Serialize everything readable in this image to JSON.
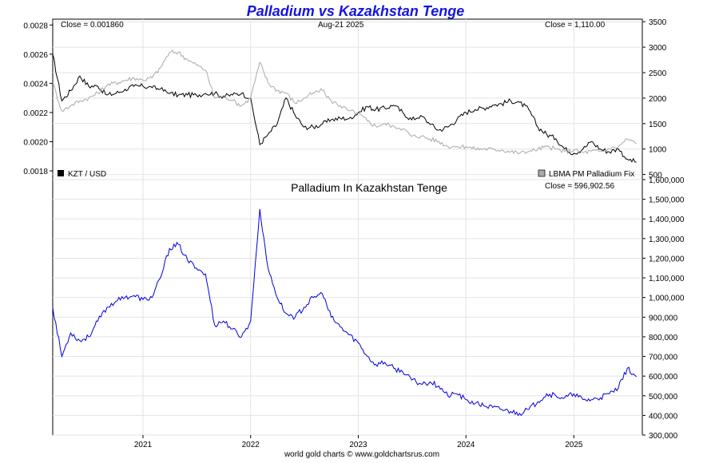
{
  "title": "Palladium vs Kazakhstan Tenge",
  "footer": "world gold charts © www.goldchartsrus.com",
  "chart_data": [
    {
      "type": "line",
      "panel": "top",
      "date_label": "Aug-21  2025",
      "left_close_label": "Close = 0.001860",
      "right_close_label": "Close = 1,110.00",
      "left_axis": {
        "ticks": [
          0.0018,
          0.002,
          0.0022,
          0.0024,
          0.0026,
          0.0028
        ],
        "ylim": [
          0.00174,
          0.00284
        ]
      },
      "right_axis": {
        "ticks": [
          500,
          1000,
          1500,
          2000,
          2500,
          3000,
          3500
        ],
        "ylim": [
          400,
          3550
        ]
      },
      "x": [
        "2020-03",
        "2020-04",
        "2020-05",
        "2020-06",
        "2020-07",
        "2020-08",
        "2020-09",
        "2020-10",
        "2020-11",
        "2020-12",
        "2021-01",
        "2021-02",
        "2021-03",
        "2021-04",
        "2021-05",
        "2021-06",
        "2021-07",
        "2021-08",
        "2021-09",
        "2021-10",
        "2021-11",
        "2021-12",
        "2022-01",
        "2022-02",
        "2022-03",
        "2022-04",
        "2022-05",
        "2022-06",
        "2022-07",
        "2022-08",
        "2022-09",
        "2022-10",
        "2022-11",
        "2022-12",
        "2023-01",
        "2023-02",
        "2023-03",
        "2023-04",
        "2023-05",
        "2023-06",
        "2023-07",
        "2023-08",
        "2023-09",
        "2023-10",
        "2023-11",
        "2023-12",
        "2024-01",
        "2024-02",
        "2024-03",
        "2024-04",
        "2024-05",
        "2024-06",
        "2024-07",
        "2024-08",
        "2024-09",
        "2024-10",
        "2024-11",
        "2024-12",
        "2025-01",
        "2025-02",
        "2025-03",
        "2025-04",
        "2025-05",
        "2025-06",
        "2025-07",
        "2025-08"
      ],
      "series": [
        {
          "name": "KZT / USD",
          "axis": "left",
          "color": "#000000",
          "values": [
            0.0026,
            0.00228,
            0.00235,
            0.00245,
            0.00238,
            0.00238,
            0.00232,
            0.00233,
            0.00236,
            0.00238,
            0.00238,
            0.00237,
            0.00236,
            0.00233,
            0.00232,
            0.00232,
            0.00232,
            0.00233,
            0.00233,
            0.00231,
            0.00232,
            0.00233,
            0.0023,
            0.00198,
            0.00205,
            0.00212,
            0.0023,
            0.00218,
            0.0021,
            0.0021,
            0.00212,
            0.00215,
            0.00216,
            0.00216,
            0.0022,
            0.00224,
            0.00222,
            0.00223,
            0.00225,
            0.0022,
            0.00215,
            0.00218,
            0.00212,
            0.00208,
            0.0021,
            0.00215,
            0.0022,
            0.00222,
            0.00223,
            0.00225,
            0.00226,
            0.00228,
            0.00227,
            0.00222,
            0.0021,
            0.00205,
            0.00202,
            0.00195,
            0.00192,
            0.00195,
            0.002,
            0.00195,
            0.00193,
            0.00195,
            0.00188,
            0.00186
          ]
        },
        {
          "name": "LBMA PM Palladium Fix",
          "axis": "right",
          "color": "#aaaaaa",
          "values": [
            2300,
            1750,
            1850,
            1950,
            2000,
            2100,
            2250,
            2300,
            2350,
            2400,
            2350,
            2400,
            2600,
            2900,
            2900,
            2750,
            2650,
            2550,
            2000,
            2050,
            1950,
            1850,
            2000,
            2700,
            2300,
            2150,
            2100,
            1900,
            2000,
            2100,
            2150,
            1950,
            1850,
            1750,
            1700,
            1550,
            1450,
            1500,
            1450,
            1400,
            1250,
            1250,
            1200,
            1150,
            1050,
            1050,
            1050,
            1000,
            1000,
            1000,
            980,
            950,
            920,
            950,
            1000,
            1050,
            1000,
            950,
            980,
            930,
            960,
            950,
            1000,
            1050,
            1200,
            1110
          ]
        }
      ],
      "legend": [
        {
          "label": "KZT / USD",
          "swatch": "#000000",
          "position": "bottom-left"
        },
        {
          "label": "LBMA PM Palladium Fix",
          "swatch": "#aaaaaa",
          "position": "bottom-right"
        }
      ]
    },
    {
      "type": "line",
      "panel": "bottom",
      "title": "Palladium In Kazakhstan Tenge",
      "close_label": "Close = 596,902.56",
      "right_axis": {
        "ticks": [
          300000,
          400000,
          500000,
          600000,
          700000,
          800000,
          900000,
          1000000,
          1100000,
          1200000,
          1300000,
          1400000,
          1500000,
          1600000
        ],
        "tick_labels": [
          "300,000",
          "400,000",
          "500,000",
          "600,000",
          "700,000",
          "800,000",
          "900,000",
          "1,000,000",
          "1,100,000",
          "1,200,000",
          "1,300,000",
          "1,400,000",
          "1,500,000",
          "1,600,000"
        ],
        "ylim": [
          300000,
          1600000
        ]
      },
      "x_ticks": [
        "2021",
        "2022",
        "2023",
        "2024",
        "2025"
      ],
      "x": [
        "2020-03",
        "2020-04",
        "2020-05",
        "2020-06",
        "2020-07",
        "2020-08",
        "2020-09",
        "2020-10",
        "2020-11",
        "2020-12",
        "2021-01",
        "2021-02",
        "2021-03",
        "2021-04",
        "2021-05",
        "2021-06",
        "2021-07",
        "2021-08",
        "2021-09",
        "2021-10",
        "2021-11",
        "2021-12",
        "2022-01",
        "2022-02",
        "2022-03",
        "2022-04",
        "2022-05",
        "2022-06",
        "2022-07",
        "2022-08",
        "2022-09",
        "2022-10",
        "2022-11",
        "2022-12",
        "2023-01",
        "2023-02",
        "2023-03",
        "2023-04",
        "2023-05",
        "2023-06",
        "2023-07",
        "2023-08",
        "2023-09",
        "2023-10",
        "2023-11",
        "2023-12",
        "2024-01",
        "2024-02",
        "2024-03",
        "2024-04",
        "2024-05",
        "2024-06",
        "2024-07",
        "2024-08",
        "2024-09",
        "2024-10",
        "2024-11",
        "2024-12",
        "2025-01",
        "2025-02",
        "2025-03",
        "2025-04",
        "2025-05",
        "2025-06",
        "2025-07",
        "2025-08"
      ],
      "series": [
        {
          "name": "Palladium In Kazakhstan Tenge",
          "color": "#0000dd",
          "values": [
            950000,
            700000,
            820000,
            780000,
            800000,
            880000,
            950000,
            980000,
            1000000,
            1010000,
            990000,
            1000000,
            1100000,
            1250000,
            1270000,
            1190000,
            1150000,
            1120000,
            860000,
            880000,
            840000,
            800000,
            880000,
            1450000,
            1150000,
            1000000,
            920000,
            900000,
            950000,
            1000000,
            1020000,
            900000,
            850000,
            810000,
            770000,
            700000,
            660000,
            670000,
            640000,
            620000,
            580000,
            560000,
            570000,
            550000,
            500000,
            510000,
            480000,
            460000,
            450000,
            440000,
            430000,
            420000,
            410000,
            430000,
            470000,
            510000,
            500000,
            490000,
            510000,
            480000,
            480000,
            490000,
            510000,
            540000,
            640000,
            596902.56
          ]
        }
      ]
    }
  ]
}
